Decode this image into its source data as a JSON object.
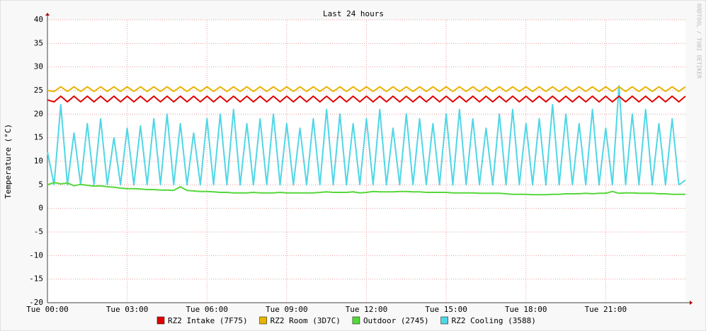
{
  "chart_data": {
    "type": "line",
    "title": "Last 24 hours",
    "y_label": "Temperature (°C)",
    "watermark": "RRDTOOL / TOBI OETIKER",
    "xlim": [
      0,
      24
    ],
    "xticks": [
      {
        "value": 0,
        "label": "Tue 00:00"
      },
      {
        "value": 3,
        "label": "Tue 03:00"
      },
      {
        "value": 6,
        "label": "Tue 06:00"
      },
      {
        "value": 9,
        "label": "Tue 09:00"
      },
      {
        "value": 12,
        "label": "Tue 12:00"
      },
      {
        "value": 15,
        "label": "Tue 15:00"
      },
      {
        "value": 18,
        "label": "Tue 18:00"
      },
      {
        "value": 21,
        "label": "Tue 21:00"
      }
    ],
    "ylim": [
      -20,
      40
    ],
    "yticks": [
      40,
      35,
      30,
      25,
      20,
      15,
      10,
      5,
      0,
      -5,
      -10,
      -15,
      -20
    ],
    "grid": true,
    "x": [
      0,
      0.25,
      0.5,
      0.75,
      1,
      1.25,
      1.5,
      1.75,
      2,
      2.25,
      2.5,
      2.75,
      3,
      3.25,
      3.5,
      3.75,
      4,
      4.25,
      4.5,
      4.75,
      5,
      5.25,
      5.5,
      5.75,
      6,
      6.25,
      6.5,
      6.75,
      7,
      7.25,
      7.5,
      7.75,
      8,
      8.25,
      8.5,
      8.75,
      9,
      9.25,
      9.5,
      9.75,
      10,
      10.25,
      10.5,
      10.75,
      11,
      11.25,
      11.5,
      11.75,
      12,
      12.25,
      12.5,
      12.75,
      13,
      13.25,
      13.5,
      13.75,
      14,
      14.25,
      14.5,
      14.75,
      15,
      15.25,
      15.5,
      15.75,
      16,
      16.25,
      16.5,
      16.75,
      17,
      17.25,
      17.5,
      17.75,
      18,
      18.25,
      18.5,
      18.75,
      19,
      19.25,
      19.5,
      19.75,
      20,
      20.25,
      20.5,
      20.75,
      21,
      21.25,
      21.5,
      21.75,
      22,
      22.25,
      22.5,
      22.75,
      23,
      23.25,
      23.5,
      23.75,
      24
    ],
    "series": [
      {
        "name": "RZ2 Intake (7F75)",
        "color": "#e00000",
        "values": [
          23,
          22.6,
          23.8,
          22.6,
          23.8,
          22.6,
          23.8,
          22.6,
          23.8,
          22.6,
          23.8,
          22.6,
          23.8,
          22.6,
          23.8,
          22.6,
          23.8,
          22.6,
          23.8,
          22.6,
          23.8,
          22.6,
          23.8,
          22.6,
          23.8,
          22.6,
          23.8,
          22.6,
          23.8,
          22.6,
          23.8,
          22.6,
          23.8,
          22.6,
          23.8,
          22.6,
          23.8,
          22.6,
          23.8,
          22.6,
          23.8,
          22.6,
          23.8,
          22.6,
          23.8,
          22.6,
          23.8,
          22.6,
          23.8,
          22.6,
          23.8,
          22.6,
          23.8,
          22.6,
          23.8,
          22.6,
          23.8,
          22.6,
          23.8,
          22.6,
          23.8,
          22.6,
          23.8,
          22.6,
          23.8,
          22.6,
          23.8,
          22.6,
          23.8,
          22.6,
          23.8,
          22.6,
          23.8,
          22.6,
          23.8,
          22.6,
          23.8,
          22.6,
          23.8,
          22.6,
          23.8,
          22.6,
          23.8,
          22.6,
          23.8,
          22.6,
          23.8,
          22.6,
          23.8,
          22.6,
          23.8,
          22.6,
          23.8,
          22.6,
          23.8,
          22.6,
          23.8
        ]
      },
      {
        "name": "RZ2 Room (3D7C)",
        "color": "#e8b400",
        "values": [
          25,
          24.8,
          25.8,
          24.8,
          25.8,
          24.8,
          25.8,
          24.8,
          25.8,
          24.8,
          25.8,
          24.8,
          25.8,
          24.8,
          25.8,
          24.8,
          25.8,
          24.8,
          25.8,
          24.8,
          25.8,
          24.8,
          25.8,
          24.8,
          25.8,
          24.8,
          25.8,
          24.8,
          25.8,
          24.8,
          25.8,
          24.8,
          25.8,
          24.8,
          25.8,
          24.8,
          25.8,
          24.8,
          25.8,
          24.8,
          25.8,
          24.8,
          25.8,
          24.8,
          25.8,
          24.8,
          25.8,
          24.8,
          25.8,
          24.8,
          25.8,
          24.8,
          25.8,
          24.8,
          25.8,
          24.8,
          25.8,
          24.8,
          25.8,
          24.8,
          25.8,
          24.8,
          25.8,
          24.8,
          25.8,
          24.8,
          25.8,
          24.8,
          25.8,
          24.8,
          25.8,
          24.8,
          25.8,
          24.8,
          25.8,
          24.8,
          25.8,
          24.8,
          25.8,
          24.8,
          25.8,
          24.8,
          25.8,
          24.8,
          25.8,
          24.8,
          25.8,
          24.8,
          25.8,
          24.8,
          25.8,
          24.8,
          25.8,
          24.8,
          25.8,
          24.8,
          25.8
        ]
      },
      {
        "name": "Outdoor (2745)",
        "color": "#55d83a",
        "values": [
          5,
          5.5,
          5.2,
          5.4,
          4.8,
          5.1,
          4.9,
          4.7,
          4.8,
          4.6,
          4.5,
          4.3,
          4.2,
          4.2,
          4.1,
          4.0,
          4.0,
          3.9,
          3.9,
          3.8,
          4.6,
          3.8,
          3.7,
          3.6,
          3.6,
          3.5,
          3.4,
          3.4,
          3.3,
          3.3,
          3.3,
          3.4,
          3.3,
          3.3,
          3.3,
          3.4,
          3.3,
          3.3,
          3.3,
          3.3,
          3.3,
          3.4,
          3.5,
          3.4,
          3.4,
          3.4,
          3.5,
          3.3,
          3.4,
          3.6,
          3.5,
          3.5,
          3.5,
          3.6,
          3.6,
          3.5,
          3.5,
          3.4,
          3.4,
          3.4,
          3.4,
          3.3,
          3.3,
          3.3,
          3.3,
          3.2,
          3.2,
          3.2,
          3.2,
          3.1,
          3.0,
          3.0,
          3.0,
          2.9,
          2.9,
          2.9,
          3.0,
          3.0,
          3.1,
          3.1,
          3.1,
          3.2,
          3.1,
          3.2,
          3.2,
          3.6,
          3.2,
          3.3,
          3.3,
          3.2,
          3.2,
          3.2,
          3.1,
          3.1,
          3.0,
          3.0,
          3.0
        ]
      },
      {
        "name": "RZ2 Cooling (3588)",
        "color": "#50d6e6",
        "values": [
          12,
          5,
          22,
          5,
          16,
          5,
          18,
          5,
          19,
          5,
          15,
          5,
          17,
          5,
          17.5,
          5,
          19,
          5,
          20,
          5,
          18,
          5,
          16,
          5,
          19,
          5,
          20,
          5,
          21,
          5,
          18,
          5,
          19,
          5,
          20,
          5,
          18,
          5,
          17,
          5,
          19,
          5,
          21,
          5,
          20,
          5,
          18,
          5,
          19,
          5,
          21,
          5,
          17,
          5,
          20,
          5,
          19,
          5,
          18,
          5,
          20,
          5,
          21,
          5,
          19,
          5,
          17,
          5,
          20,
          5,
          21,
          5,
          18,
          5,
          19,
          5,
          22,
          5,
          20,
          5,
          18,
          5,
          21,
          5,
          17,
          5,
          26,
          5,
          20,
          5,
          21,
          5,
          18,
          5,
          19,
          5,
          6
        ]
      }
    ]
  }
}
